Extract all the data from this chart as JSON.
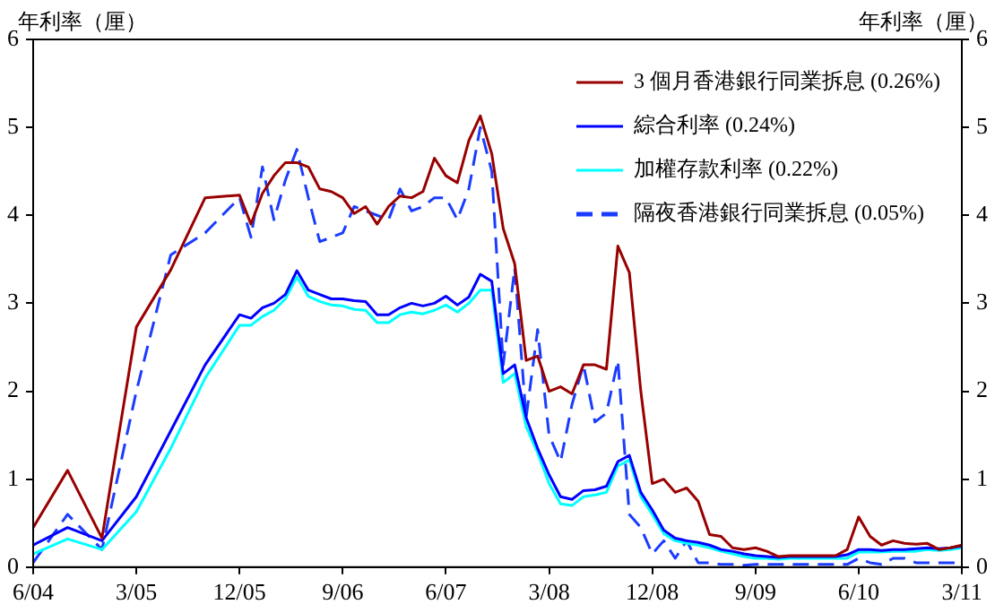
{
  "chart_data": {
    "type": "line",
    "ylabel": "年利率（厘）",
    "y2label": "年利率（厘）",
    "x": [
      "2004-06",
      "2004-09",
      "2004-12",
      "2005-03",
      "2005-06",
      "2005-09",
      "2005-12",
      "2006-01",
      "2006-02",
      "2006-03",
      "2006-04",
      "2006-05",
      "2006-06",
      "2006-07",
      "2006-08",
      "2006-09",
      "2006-10",
      "2006-11",
      "2006-12",
      "2007-01",
      "2007-02",
      "2007-03",
      "2007-04",
      "2007-05",
      "2007-06",
      "2007-07",
      "2007-08",
      "2007-09",
      "2007-10",
      "2007-11",
      "2007-12",
      "2008-01",
      "2008-02",
      "2008-03",
      "2008-04",
      "2008-05",
      "2008-06",
      "2008-07",
      "2008-08",
      "2008-09",
      "2008-10",
      "2008-11",
      "2008-12",
      "2009-01",
      "2009-02",
      "2009-03",
      "2009-04",
      "2009-05",
      "2009-06",
      "2009-07",
      "2009-08",
      "2009-09",
      "2009-10",
      "2009-11",
      "2009-12",
      "2010-01",
      "2010-02",
      "2010-03",
      "2010-04",
      "2010-05",
      "2010-06",
      "2010-07",
      "2010-08",
      "2010-09",
      "2010-10",
      "2010-11",
      "2010-12",
      "2011-01",
      "2011-02",
      "2011-03"
    ],
    "series": [
      {
        "name": "3 個月香港銀行同業拆息 (0.26%)",
        "color": "#990000",
        "values": [
          0.45,
          1.1,
          0.33,
          2.73,
          3.38,
          4.2,
          4.23,
          3.9,
          4.25,
          4.45,
          4.6,
          4.6,
          4.55,
          4.3,
          4.27,
          4.2,
          4.02,
          4.1,
          3.9,
          4.1,
          4.22,
          4.2,
          4.27,
          4.65,
          4.45,
          4.37,
          4.85,
          5.13,
          4.7,
          3.85,
          3.45,
          2.35,
          2.4,
          2.0,
          2.05,
          1.97,
          2.3,
          2.3,
          2.25,
          3.65,
          3.35,
          2.0,
          0.95,
          1.0,
          0.85,
          0.9,
          0.75,
          0.37,
          0.35,
          0.22,
          0.2,
          0.22,
          0.18,
          0.12,
          0.13,
          0.13,
          0.13,
          0.13,
          0.13,
          0.2,
          0.57,
          0.35,
          0.25,
          0.3,
          0.27,
          0.26,
          0.27,
          0.2,
          0.22,
          0.25
        ]
      },
      {
        "name": "綜合利率 (0.24%)",
        "color": "#0000ff",
        "values": [
          0.25,
          0.45,
          0.3,
          0.8,
          1.55,
          2.3,
          2.87,
          2.83,
          2.95,
          3.0,
          3.1,
          3.37,
          3.15,
          3.1,
          3.05,
          3.05,
          3.03,
          3.02,
          2.87,
          2.87,
          2.95,
          3.0,
          2.97,
          3.0,
          3.08,
          2.98,
          3.07,
          3.33,
          3.25,
          2.2,
          2.3,
          1.7,
          1.35,
          1.05,
          0.8,
          0.77,
          0.87,
          0.88,
          0.92,
          1.2,
          1.27,
          0.85,
          0.65,
          0.42,
          0.33,
          0.3,
          0.28,
          0.25,
          0.2,
          0.18,
          0.15,
          0.13,
          0.12,
          0.11,
          0.12,
          0.12,
          0.12,
          0.12,
          0.12,
          0.14,
          0.2,
          0.2,
          0.19,
          0.2,
          0.2,
          0.21,
          0.22,
          0.21,
          0.22,
          0.24
        ]
      },
      {
        "name": "加權存款利率 (0.22%)",
        "color": "#00ffff",
        "values": [
          0.15,
          0.32,
          0.2,
          0.63,
          1.35,
          2.15,
          2.75,
          2.75,
          2.85,
          2.92,
          3.05,
          3.3,
          3.08,
          3.02,
          2.98,
          2.97,
          2.93,
          2.92,
          2.78,
          2.78,
          2.87,
          2.9,
          2.88,
          2.92,
          2.98,
          2.9,
          3.0,
          3.15,
          3.15,
          2.1,
          2.2,
          1.6,
          1.3,
          0.95,
          0.72,
          0.7,
          0.8,
          0.82,
          0.85,
          1.15,
          1.22,
          0.8,
          0.6,
          0.38,
          0.3,
          0.27,
          0.25,
          0.22,
          0.18,
          0.15,
          0.12,
          0.1,
          0.1,
          0.09,
          0.1,
          0.1,
          0.1,
          0.1,
          0.1,
          0.1,
          0.17,
          0.17,
          0.17,
          0.18,
          0.18,
          0.18,
          0.2,
          0.19,
          0.2,
          0.22
        ]
      },
      {
        "name": "隔夜香港銀行同業拆息 (0.05%)",
        "color": "#1a3cff",
        "line_style": "dashed",
        "values": [
          0.05,
          0.6,
          0.2,
          2.0,
          3.55,
          3.8,
          4.2,
          3.75,
          4.55,
          3.95,
          4.4,
          4.75,
          4.2,
          3.7,
          3.75,
          3.8,
          4.1,
          4.05,
          4.0,
          3.95,
          4.3,
          4.05,
          4.1,
          4.2,
          4.2,
          3.95,
          4.3,
          5.0,
          4.5,
          2.3,
          3.4,
          1.7,
          2.7,
          1.5,
          1.2,
          1.85,
          2.3,
          1.65,
          1.75,
          2.35,
          0.6,
          0.45,
          0.15,
          0.3,
          0.1,
          0.3,
          0.05,
          0.05,
          0.03,
          0.03,
          0.02,
          0.03,
          0.03,
          0.03,
          0.03,
          0.03,
          0.03,
          0.03,
          0.03,
          0.03,
          0.1,
          0.05,
          0.03,
          0.1,
          0.1,
          0.05,
          0.05,
          0.05,
          0.05,
          0.05
        ]
      }
    ],
    "xlim": [
      "2004-06",
      "2011-03"
    ],
    "xticks": [
      {
        "value": "2004-06",
        "label": "6/04"
      },
      {
        "value": "2005-03",
        "label": "3/05"
      },
      {
        "value": "2005-12",
        "label": "12/05"
      },
      {
        "value": "2006-09",
        "label": "9/06"
      },
      {
        "value": "2007-06",
        "label": "6/07"
      },
      {
        "value": "2008-03",
        "label": "3/08"
      },
      {
        "value": "2008-12",
        "label": "12/08"
      },
      {
        "value": "2009-09",
        "label": "9/09"
      },
      {
        "value": "2010-06",
        "label": "6/10"
      },
      {
        "value": "2011-03",
        "label": "3/11"
      }
    ],
    "ylim": [
      0,
      6
    ],
    "yticks": [
      0,
      1,
      2,
      3,
      4,
      5,
      6
    ],
    "y2lim": [
      0,
      6
    ],
    "y2ticks": [
      0,
      1,
      2,
      3,
      4,
      5,
      6
    ],
    "grid": false,
    "legend": "top right",
    "marker": "none",
    "line_style": "solid"
  }
}
